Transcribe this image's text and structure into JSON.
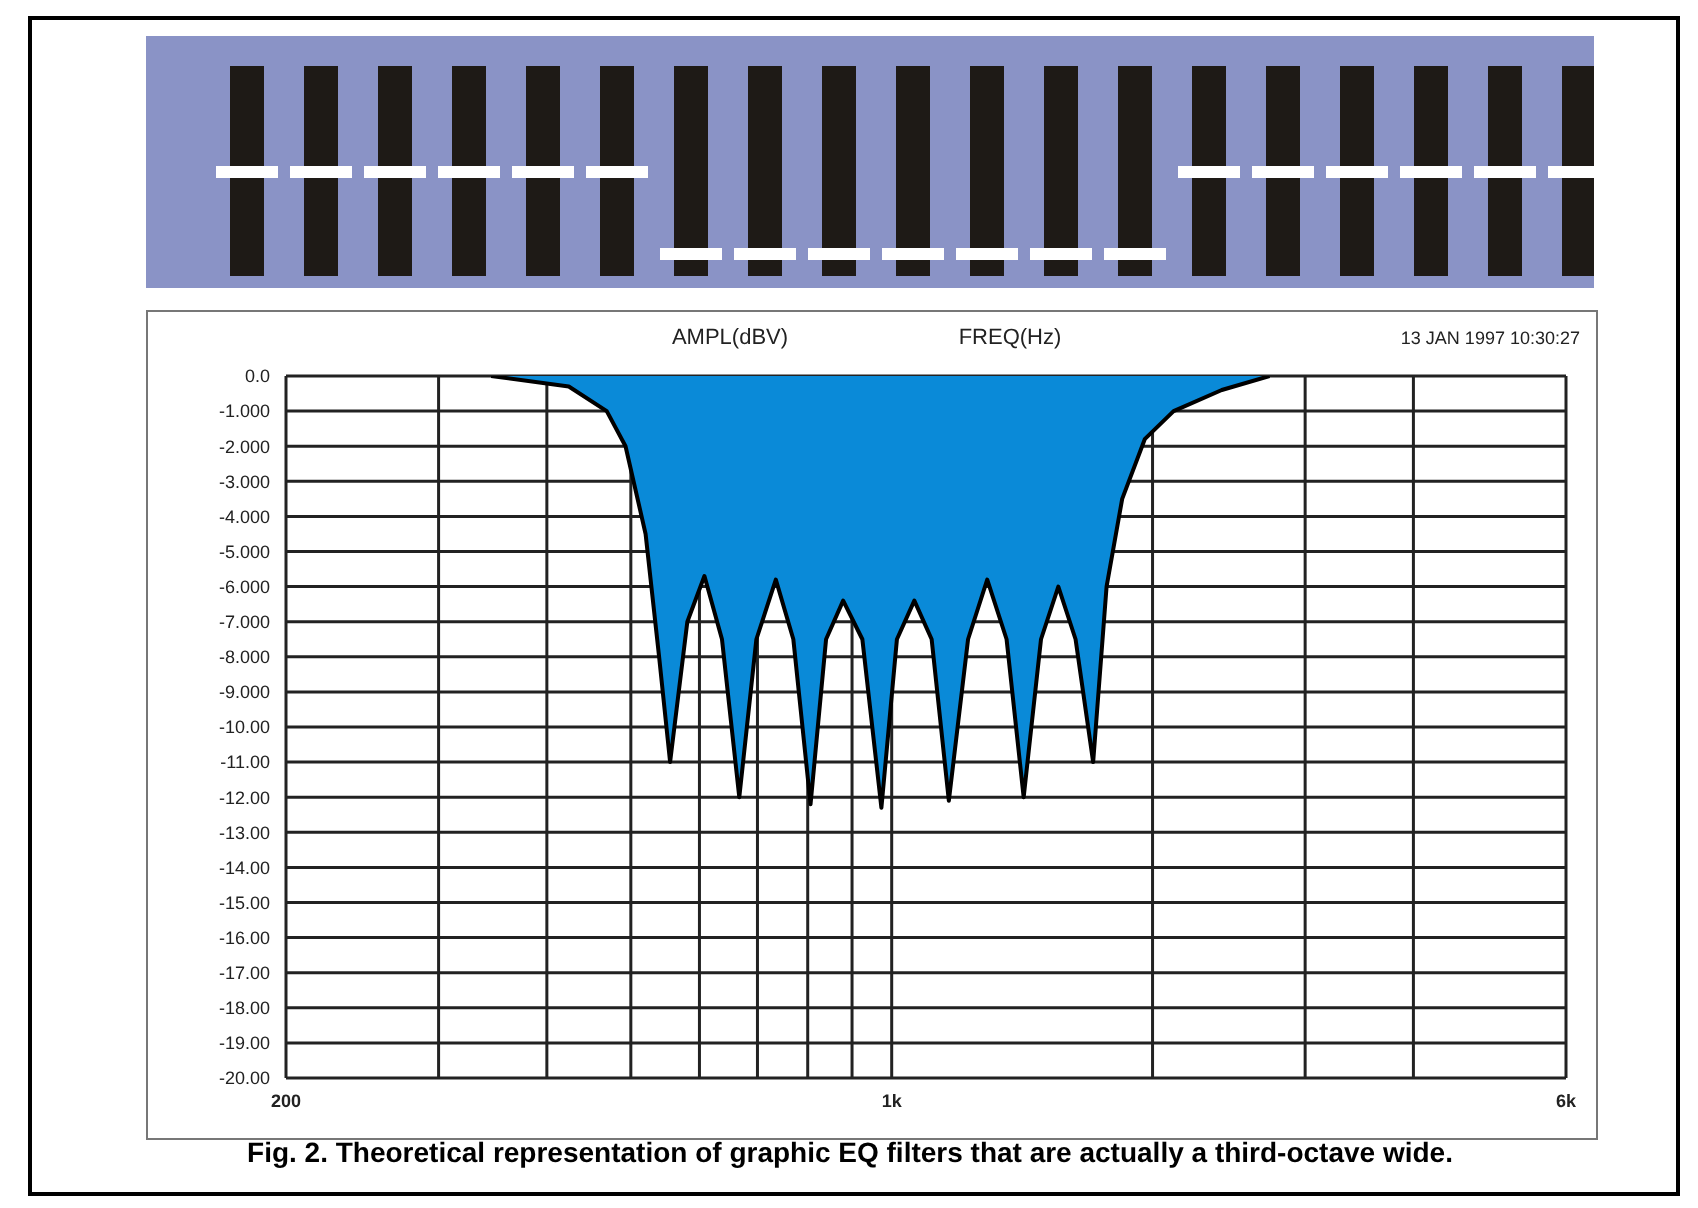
{
  "chart_data": {
    "type": "area",
    "xlabel": "FREQ(Hz)",
    "ylabel": "AMPL(dBV)",
    "annotations": [
      "13 JAN 1997 10:30:27",
      "Fig. 2. Theoretical representation of graphic EQ filters that are actually a third-octave wide."
    ],
    "x": [
      345,
      424,
      469,
      493,
      520,
      539,
      555,
      581,
      608,
      637,
      667,
      698,
      735,
      770,
      806,
      840,
      879,
      925,
      973,
      1014,
      1062,
      1112,
      1164,
      1225,
      1289,
      1357,
      1420,
      1487,
      1557,
      1630,
      1708,
      1770,
      1845,
      1959,
      2115,
      2404,
      2729
    ],
    "series": [
      {
        "color": "#0a8ad8",
        "values": [
          0,
          -0.3,
          -1,
          -2,
          -4.5,
          -8,
          -11,
          -7,
          -5.7,
          -7.5,
          -12,
          -7.5,
          -5.8,
          -7.5,
          -12.2,
          -7.5,
          -6.4,
          -7.5,
          -12.3,
          -7.5,
          -6.4,
          -7.5,
          -12.1,
          -7.5,
          -5.8,
          -7.5,
          -12,
          -7.5,
          -6,
          -7.5,
          -11,
          -6,
          -3.5,
          -1.8,
          -1,
          -0.4,
          0
        ]
      }
    ],
    "xlim": [
      200,
      6000
    ],
    "log": "x",
    "xticks": [
      {
        "value": 200,
        "label": "200"
      },
      {
        "value": 300,
        "label": null
      },
      {
        "value": 400,
        "label": null
      },
      {
        "value": 500,
        "label": null
      },
      {
        "value": 600,
        "label": null
      },
      {
        "value": 700,
        "label": null
      },
      {
        "value": 800,
        "label": null
      },
      {
        "value": 900,
        "label": null
      },
      {
        "value": 1000,
        "label": "1k"
      },
      {
        "value": 2000,
        "label": null
      },
      {
        "value": 3000,
        "label": null
      },
      {
        "value": 4000,
        "label": null
      },
      {
        "value": 6000,
        "label": "6k"
      }
    ],
    "ylim": [
      -20,
      0
    ],
    "yticks": [
      {
        "value": 0,
        "label": "0.0"
      },
      {
        "value": -1,
        "label": "-1.000"
      },
      {
        "value": -2,
        "label": "-2.000"
      },
      {
        "value": -3,
        "label": "-3.000"
      },
      {
        "value": -4,
        "label": "-4.000"
      },
      {
        "value": -5,
        "label": "-5.000"
      },
      {
        "value": -6,
        "label": "-6.000"
      },
      {
        "value": -7,
        "label": "-7.000"
      },
      {
        "value": -8,
        "label": "-8.000"
      },
      {
        "value": -9,
        "label": "-9.000"
      },
      {
        "value": -10,
        "label": "-10.00"
      },
      {
        "value": -11,
        "label": "-11.00"
      },
      {
        "value": -12,
        "label": "-12.00"
      },
      {
        "value": -13,
        "label": "-13.00"
      },
      {
        "value": -14,
        "label": "-14.00"
      },
      {
        "value": -15,
        "label": "-15.00"
      },
      {
        "value": -16,
        "label": "-16.00"
      },
      {
        "value": -17,
        "label": "-17.00"
      },
      {
        "value": -18,
        "label": "-18.00"
      },
      {
        "value": -19,
        "label": "-19.00"
      },
      {
        "value": -20,
        "label": "-20.00"
      }
    ],
    "grid": true,
    "marker": "none",
    "line_style": "solid"
  }
}
